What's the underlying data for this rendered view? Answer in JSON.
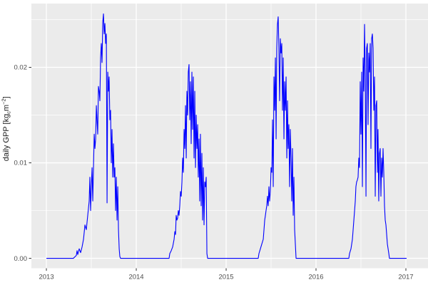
{
  "chart": {
    "panel_background": "#EBEBEB",
    "figure_background": "#FFFFFF",
    "grid_color": "#FFFFFF",
    "tick_mark_color": "#333333",
    "tick_label_color": "#4D4D4D",
    "axis_title_color": "#1A1A1A",
    "y_axis": {
      "title_parts": [
        {
          "t": "daily GPP [kg",
          "style": "normal"
        },
        {
          "t": "c",
          "style": "sub"
        },
        {
          "t": "m",
          "style": "normal"
        },
        {
          "t": "−2",
          "style": "sup"
        },
        {
          "t": "]",
          "style": "normal"
        }
      ],
      "tick_values": [
        0,
        0.01,
        0.02
      ],
      "tick_labels": [
        "0.00",
        "0.01",
        "0.02"
      ],
      "minor_tick_values": [
        0.005,
        0.015,
        0.025
      ]
    },
    "x_axis": {
      "tick_values": [
        2013,
        2014,
        2015,
        2016,
        2017
      ],
      "tick_labels": [
        "2013",
        "2014",
        "2015",
        "2016",
        "2017"
      ],
      "minor_tick_values": [
        2013.5,
        2014.5,
        2015.5,
        2016.5
      ]
    }
  },
  "chart_data": {
    "type": "line",
    "title": "",
    "xlabel": "",
    "ylabel": "daily GPP [kg_c m^-2]",
    "x_unit": "decimal year",
    "xlim": [
      2012.833,
      2017.246
    ],
    "ylim": [
      -0.00104,
      0.02668
    ],
    "grid": true,
    "legend": false,
    "series": [
      {
        "name": "daily GPP",
        "color": "#0000FF",
        "points": [
          [
            2013.0,
            0
          ],
          [
            2013.3,
            0
          ],
          [
            2013.333,
            0.0003
          ],
          [
            2013.341,
            0.0008
          ],
          [
            2013.349,
            0.0004
          ],
          [
            2013.365,
            0.001
          ],
          [
            2013.381,
            0.0006
          ],
          [
            2013.397,
            0.0012
          ],
          [
            2013.413,
            0.002
          ],
          [
            2013.429,
            0.0035
          ],
          [
            2013.444,
            0.003
          ],
          [
            2013.46,
            0.0045
          ],
          [
            2013.476,
            0.006
          ],
          [
            2013.484,
            0.0085
          ],
          [
            2013.492,
            0.005
          ],
          [
            2013.5,
            0.0075
          ],
          [
            2013.508,
            0.0095
          ],
          [
            2013.516,
            0.006
          ],
          [
            2013.524,
            0.0095
          ],
          [
            2013.532,
            0.013
          ],
          [
            2013.54,
            0.0115
          ],
          [
            2013.548,
            0.0125
          ],
          [
            2013.556,
            0.016
          ],
          [
            2013.563,
            0.0145
          ],
          [
            2013.571,
            0.013
          ],
          [
            2013.579,
            0.018
          ],
          [
            2013.587,
            0.0175
          ],
          [
            2013.595,
            0.0165
          ],
          [
            2013.603,
            0.021
          ],
          [
            2013.611,
            0.0225
          ],
          [
            2013.619,
            0.0205
          ],
          [
            2013.627,
            0.0247
          ],
          [
            2013.635,
            0.0256
          ],
          [
            2013.643,
            0.0235
          ],
          [
            2013.651,
            0.0246
          ],
          [
            2013.659,
            0.0225
          ],
          [
            2013.667,
            0.0235
          ],
          [
            2013.675,
            0.0058
          ],
          [
            2013.683,
            0.0195
          ],
          [
            2013.69,
            0.0175
          ],
          [
            2013.698,
            0.019
          ],
          [
            2013.706,
            0.0145
          ],
          [
            2013.714,
            0.0155
          ],
          [
            2013.722,
            0.01
          ],
          [
            2013.73,
            0.0135
          ],
          [
            2013.738,
            0.0085
          ],
          [
            2013.746,
            0.012
          ],
          [
            2013.754,
            0.0085
          ],
          [
            2013.762,
            0.0095
          ],
          [
            2013.77,
            0.005
          ],
          [
            2013.778,
            0.0085
          ],
          [
            2013.786,
            0.004
          ],
          [
            2013.794,
            0.0075
          ],
          [
            2013.802,
            0.003
          ],
          [
            2013.81,
            0.001
          ],
          [
            2013.817,
            0.0002
          ],
          [
            2013.825,
            0
          ],
          [
            2014.0,
            0
          ],
          [
            2014.2,
            0
          ],
          [
            2014.365,
            0
          ],
          [
            2014.373,
            0.0005
          ],
          [
            2014.389,
            0.0008
          ],
          [
            2014.405,
            0.0012
          ],
          [
            2014.421,
            0.002
          ],
          [
            2014.429,
            0.0028
          ],
          [
            2014.437,
            0.0025
          ],
          [
            2014.444,
            0.0045
          ],
          [
            2014.452,
            0.004
          ],
          [
            2014.46,
            0.0042
          ],
          [
            2014.468,
            0.005
          ],
          [
            2014.476,
            0.0045
          ],
          [
            2014.484,
            0.0055
          ],
          [
            2014.492,
            0.007
          ],
          [
            2014.5,
            0.0065
          ],
          [
            2014.508,
            0.008
          ],
          [
            2014.516,
            0.0105
          ],
          [
            2014.524,
            0.009
          ],
          [
            2014.532,
            0.0135
          ],
          [
            2014.54,
            0.0115
          ],
          [
            2014.548,
            0.016
          ],
          [
            2014.556,
            0.0105
          ],
          [
            2014.563,
            0.0175
          ],
          [
            2014.571,
            0.015
          ],
          [
            2014.579,
            0.0195
          ],
          [
            2014.587,
            0.0203
          ],
          [
            2014.595,
            0.0145
          ],
          [
            2014.603,
            0.0185
          ],
          [
            2014.611,
            0.012
          ],
          [
            2014.619,
            0.0195
          ],
          [
            2014.627,
            0.0135
          ],
          [
            2014.635,
            0.019
          ],
          [
            2014.643,
            0.0105
          ],
          [
            2014.651,
            0.0175
          ],
          [
            2014.659,
            0.0095
          ],
          [
            2014.667,
            0.015
          ],
          [
            2014.675,
            0.0115
          ],
          [
            2014.683,
            0.014
          ],
          [
            2014.69,
            0.0085
          ],
          [
            2014.698,
            0.0125
          ],
          [
            2014.706,
            0.006
          ],
          [
            2014.714,
            0.013
          ],
          [
            2014.722,
            0.0055
          ],
          [
            2014.73,
            0.011
          ],
          [
            2014.738,
            0.004
          ],
          [
            2014.746,
            0.0095
          ],
          [
            2014.754,
            0.0035
          ],
          [
            2014.762,
            0.008
          ],
          [
            2014.77,
            0.0075
          ],
          [
            2014.778,
            0.0085
          ],
          [
            2014.786,
            0.0005
          ],
          [
            2014.794,
            0
          ],
          [
            2015.0,
            0
          ],
          [
            2015.2,
            0
          ],
          [
            2015.357,
            0
          ],
          [
            2015.365,
            0.0005
          ],
          [
            2015.381,
            0.001
          ],
          [
            2015.397,
            0.0015
          ],
          [
            2015.413,
            0.002
          ],
          [
            2015.421,
            0.003
          ],
          [
            2015.429,
            0.004
          ],
          [
            2015.437,
            0.0045
          ],
          [
            2015.444,
            0.005
          ],
          [
            2015.452,
            0.0055
          ],
          [
            2015.46,
            0.0065
          ],
          [
            2015.468,
            0.0055
          ],
          [
            2015.476,
            0.0075
          ],
          [
            2015.484,
            0.006
          ],
          [
            2015.492,
            0.007
          ],
          [
            2015.5,
            0.0095
          ],
          [
            2015.508,
            0.009
          ],
          [
            2015.516,
            0.0145
          ],
          [
            2015.524,
            0.0075
          ],
          [
            2015.532,
            0.019
          ],
          [
            2015.54,
            0.0155
          ],
          [
            2015.548,
            0.021
          ],
          [
            2015.556,
            0.0125
          ],
          [
            2015.563,
            0.022
          ],
          [
            2015.571,
            0.0245
          ],
          [
            2015.579,
            0.0253
          ],
          [
            2015.587,
            0.022
          ],
          [
            2015.595,
            0.0165
          ],
          [
            2015.603,
            0.023
          ],
          [
            2015.611,
            0.0215
          ],
          [
            2015.619,
            0.0225
          ],
          [
            2015.627,
            0.0155
          ],
          [
            2015.635,
            0.021
          ],
          [
            2015.643,
            0.0125
          ],
          [
            2015.651,
            0.0185
          ],
          [
            2015.659,
            0.0155
          ],
          [
            2015.667,
            0.019
          ],
          [
            2015.675,
            0.0105
          ],
          [
            2015.683,
            0.0165
          ],
          [
            2015.69,
            0.0115
          ],
          [
            2015.698,
            0.014
          ],
          [
            2015.706,
            0.0075
          ],
          [
            2015.714,
            0.0135
          ],
          [
            2015.722,
            0.0105
          ],
          [
            2015.73,
            0.006
          ],
          [
            2015.738,
            0.0115
          ],
          [
            2015.746,
            0.0045
          ],
          [
            2015.754,
            0.0085
          ],
          [
            2015.762,
            0.003
          ],
          [
            2015.77,
            0.0015
          ],
          [
            2015.778,
            0
          ],
          [
            2016.0,
            0
          ],
          [
            2016.2,
            0
          ],
          [
            2016.365,
            0
          ],
          [
            2016.373,
            0.0005
          ],
          [
            2016.389,
            0.001
          ],
          [
            2016.405,
            0.002
          ],
          [
            2016.413,
            0.003
          ],
          [
            2016.421,
            0.004
          ],
          [
            2016.429,
            0.005
          ],
          [
            2016.437,
            0.006
          ],
          [
            2016.444,
            0.0075
          ],
          [
            2016.452,
            0.008
          ],
          [
            2016.46,
            0.0082
          ],
          [
            2016.468,
            0.0085
          ],
          [
            2016.476,
            0.0105
          ],
          [
            2016.484,
            0.0095
          ],
          [
            2016.492,
            0.0185
          ],
          [
            2016.5,
            0.013
          ],
          [
            2016.508,
            0.0195
          ],
          [
            2016.516,
            0.0075
          ],
          [
            2016.524,
            0.021
          ],
          [
            2016.532,
            0.0175
          ],
          [
            2016.54,
            0.0245
          ],
          [
            2016.548,
            0.019
          ],
          [
            2016.556,
            0.0065
          ],
          [
            2016.563,
            0.022
          ],
          [
            2016.571,
            0.0225
          ],
          [
            2016.579,
            0.014
          ],
          [
            2016.587,
            0.0215
          ],
          [
            2016.595,
            0.0195
          ],
          [
            2016.603,
            0.0225
          ],
          [
            2016.611,
            0.0115
          ],
          [
            2016.619,
            0.023
          ],
          [
            2016.627,
            0.0235
          ],
          [
            2016.635,
            0.022
          ],
          [
            2016.643,
            0.0155
          ],
          [
            2016.651,
            0.019
          ],
          [
            2016.659,
            0.0065
          ],
          [
            2016.667,
            0.016
          ],
          [
            2016.675,
            0.0165
          ],
          [
            2016.683,
            0.009
          ],
          [
            2016.69,
            0.0135
          ],
          [
            2016.698,
            0.006
          ],
          [
            2016.706,
            0.011
          ],
          [
            2016.714,
            0.0115
          ],
          [
            2016.722,
            0.0065
          ],
          [
            2016.73,
            0.0105
          ],
          [
            2016.738,
            0.0085
          ],
          [
            2016.746,
            0.0115
          ],
          [
            2016.754,
            0.009
          ],
          [
            2016.762,
            0.0055
          ],
          [
            2016.77,
            0.004
          ],
          [
            2016.778,
            0.0035
          ],
          [
            2016.786,
            0.0025
          ],
          [
            2016.794,
            0.0015
          ],
          [
            2016.802,
            0.001
          ],
          [
            2016.81,
            0.0005
          ],
          [
            2016.817,
            0
          ],
          [
            2016.9,
            0
          ],
          [
            2017.008,
            0
          ]
        ]
      }
    ]
  }
}
